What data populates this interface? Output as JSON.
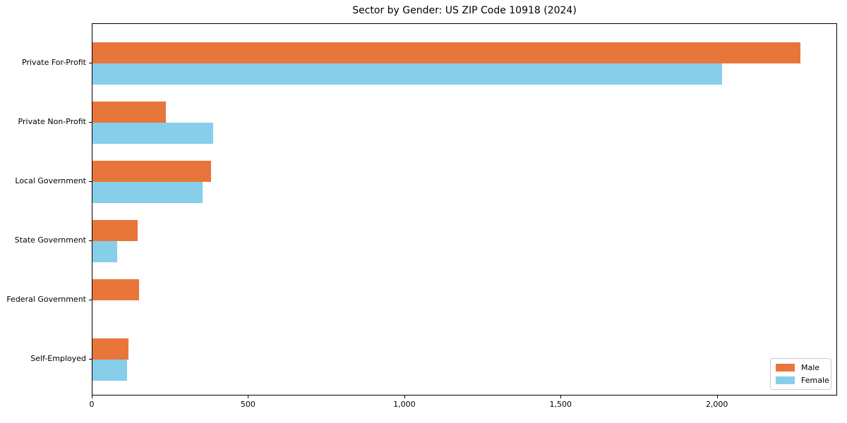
{
  "chart_data": {
    "type": "bar",
    "orientation": "horizontal",
    "title": "Sector by Gender: US ZIP Code 10918 (2024)",
    "xlabel": "",
    "ylabel": "",
    "categories": [
      "Private For-Profit",
      "Private Non-Profit",
      "Local Government",
      "State Government",
      "Federal Government",
      "Self-Employed"
    ],
    "series": [
      {
        "name": "Male",
        "color": "#e8763b",
        "values": [
          2265,
          235,
          380,
          145,
          150,
          115
        ]
      },
      {
        "name": "Female",
        "color": "#87ceeb",
        "values": [
          2015,
          385,
          352,
          78,
          0,
          110
        ]
      }
    ],
    "xlim": [
      0,
      2380
    ],
    "x_ticks": [
      {
        "value": 0,
        "label": "0"
      },
      {
        "value": 500,
        "label": "500"
      },
      {
        "value": 1000,
        "label": "1,000"
      },
      {
        "value": 1500,
        "label": "1,500"
      },
      {
        "value": 2000,
        "label": "2,000"
      }
    ],
    "grid": false,
    "legend_position": "lower right"
  }
}
